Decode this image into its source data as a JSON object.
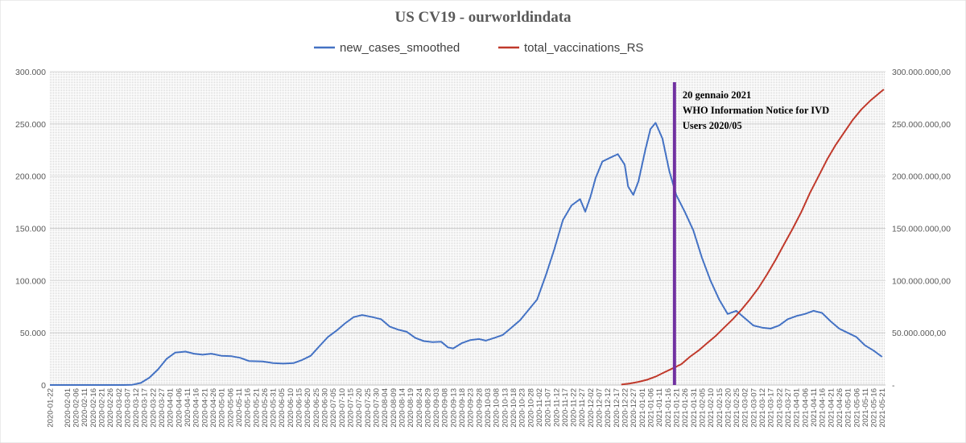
{
  "chart_data": {
    "type": "line",
    "title": "US CV19  - ourworldindata",
    "legend": "top",
    "grid": true,
    "series": [
      {
        "name": "new_cases_smoothed",
        "axis": "left",
        "color": "#4472C4",
        "points": [
          [
            "2020-01-22",
            0
          ],
          [
            "2020-02-15",
            0
          ],
          [
            "2020-03-05",
            0
          ],
          [
            "2020-03-10",
            200
          ],
          [
            "2020-03-15",
            2000
          ],
          [
            "2020-03-20",
            7000
          ],
          [
            "2020-03-25",
            15000
          ],
          [
            "2020-03-30",
            25000
          ],
          [
            "2020-04-04",
            31000
          ],
          [
            "2020-04-10",
            32000
          ],
          [
            "2020-04-15",
            30000
          ],
          [
            "2020-04-20",
            29000
          ],
          [
            "2020-04-25",
            30000
          ],
          [
            "2020-05-01",
            28000
          ],
          [
            "2020-05-07",
            27500
          ],
          [
            "2020-05-12",
            26000
          ],
          [
            "2020-05-17",
            23000
          ],
          [
            "2020-05-25",
            22500
          ],
          [
            "2020-05-31",
            21000
          ],
          [
            "2020-06-06",
            20500
          ],
          [
            "2020-06-12",
            21000
          ],
          [
            "2020-06-17",
            24000
          ],
          [
            "2020-06-22",
            28000
          ],
          [
            "2020-06-27",
            37000
          ],
          [
            "2020-07-02",
            46000
          ],
          [
            "2020-07-07",
            52000
          ],
          [
            "2020-07-12",
            59000
          ],
          [
            "2020-07-17",
            65000
          ],
          [
            "2020-07-22",
            67000
          ],
          [
            "2020-07-28",
            65000
          ],
          [
            "2020-08-02",
            63000
          ],
          [
            "2020-08-07",
            56000
          ],
          [
            "2020-08-12",
            53000
          ],
          [
            "2020-08-17",
            51000
          ],
          [
            "2020-08-22",
            45000
          ],
          [
            "2020-08-27",
            42000
          ],
          [
            "2020-09-01",
            41000
          ],
          [
            "2020-09-06",
            41500
          ],
          [
            "2020-09-10",
            36000
          ],
          [
            "2020-09-13",
            35000
          ],
          [
            "2020-09-18",
            40000
          ],
          [
            "2020-09-23",
            43000
          ],
          [
            "2020-09-28",
            44000
          ],
          [
            "2020-10-02",
            42500
          ],
          [
            "2020-10-07",
            45000
          ],
          [
            "2020-10-12",
            48000
          ],
          [
            "2020-10-17",
            55000
          ],
          [
            "2020-10-22",
            62000
          ],
          [
            "2020-10-27",
            72000
          ],
          [
            "2020-11-01",
            82000
          ],
          [
            "2020-11-06",
            105000
          ],
          [
            "2020-11-11",
            130000
          ],
          [
            "2020-11-16",
            158000
          ],
          [
            "2020-11-21",
            172000
          ],
          [
            "2020-11-26",
            178000
          ],
          [
            "2020-11-29",
            166000
          ],
          [
            "2020-12-02",
            180000
          ],
          [
            "2020-12-05",
            198000
          ],
          [
            "2020-12-09",
            214000
          ],
          [
            "2020-12-14",
            218000
          ],
          [
            "2020-12-18",
            221000
          ],
          [
            "2020-12-22",
            211000
          ],
          [
            "2020-12-24",
            190000
          ],
          [
            "2020-12-27",
            182000
          ],
          [
            "2020-12-30",
            195000
          ],
          [
            "2021-01-03",
            225000
          ],
          [
            "2021-01-06",
            245000
          ],
          [
            "2021-01-09",
            251000
          ],
          [
            "2021-01-13",
            236000
          ],
          [
            "2021-01-17",
            205000
          ],
          [
            "2021-01-21",
            182000
          ],
          [
            "2021-01-26",
            166000
          ],
          [
            "2021-01-31",
            148000
          ],
          [
            "2021-02-05",
            122000
          ],
          [
            "2021-02-10",
            100000
          ],
          [
            "2021-02-15",
            82000
          ],
          [
            "2021-02-20",
            68000
          ],
          [
            "2021-02-25",
            71000
          ],
          [
            "2021-03-02",
            64000
          ],
          [
            "2021-03-07",
            57000
          ],
          [
            "2021-03-12",
            55000
          ],
          [
            "2021-03-17",
            54000
          ],
          [
            "2021-03-22",
            57000
          ],
          [
            "2021-03-27",
            63000
          ],
          [
            "2021-04-01",
            66000
          ],
          [
            "2021-04-06",
            68000
          ],
          [
            "2021-04-11",
            71000
          ],
          [
            "2021-04-16",
            69000
          ],
          [
            "2021-04-21",
            61000
          ],
          [
            "2021-04-26",
            54000
          ],
          [
            "2021-05-01",
            50000
          ],
          [
            "2021-05-06",
            46000
          ],
          [
            "2021-05-11",
            38000
          ],
          [
            "2021-05-16",
            33000
          ],
          [
            "2021-05-21",
            27000
          ]
        ]
      },
      {
        "name": "total_vaccinations_RS",
        "axis": "right",
        "color": "#C0392B",
        "points": [
          [
            "2020-12-20",
            500000
          ],
          [
            "2020-12-25",
            1500000
          ],
          [
            "2020-12-30",
            3000000
          ],
          [
            "2021-01-04",
            5000000
          ],
          [
            "2021-01-09",
            8000000
          ],
          [
            "2021-01-14",
            12000000
          ],
          [
            "2021-01-19",
            16000000
          ],
          [
            "2021-01-24",
            20000000
          ],
          [
            "2021-01-29",
            27000000
          ],
          [
            "2021-02-03",
            33000000
          ],
          [
            "2021-02-08",
            40000000
          ],
          [
            "2021-02-13",
            47000000
          ],
          [
            "2021-02-18",
            55000000
          ],
          [
            "2021-02-23",
            63000000
          ],
          [
            "2021-02-28",
            72000000
          ],
          [
            "2021-03-05",
            82000000
          ],
          [
            "2021-03-10",
            93000000
          ],
          [
            "2021-03-15",
            106000000
          ],
          [
            "2021-03-20",
            120000000
          ],
          [
            "2021-03-25",
            135000000
          ],
          [
            "2021-03-30",
            150000000
          ],
          [
            "2021-04-04",
            166000000
          ],
          [
            "2021-04-09",
            184000000
          ],
          [
            "2021-04-14",
            200000000
          ],
          [
            "2021-04-19",
            216000000
          ],
          [
            "2021-04-24",
            230000000
          ],
          [
            "2021-04-29",
            242000000
          ],
          [
            "2021-05-04",
            254000000
          ],
          [
            "2021-05-09",
            264000000
          ],
          [
            "2021-05-14",
            272000000
          ],
          [
            "2021-05-19",
            279000000
          ],
          [
            "2021-05-22",
            283000000
          ]
        ]
      }
    ],
    "x_axis": {
      "type": "date",
      "range": [
        "2020-01-22",
        "2021-05-23"
      ],
      "ticks": [
        "2020-01-22",
        "2020-02-01",
        "2020-02-06",
        "2020-02-11",
        "2020-02-16",
        "2020-02-21",
        "2020-02-26",
        "2020-03-02",
        "2020-03-07",
        "2020-03-12",
        "2020-03-17",
        "2020-03-22",
        "2020-03-27",
        "2020-04-01",
        "2020-04-06",
        "2020-04-11",
        "2020-04-16",
        "2020-04-21",
        "2020-04-26",
        "2020-05-01",
        "2020-05-06",
        "2020-05-11",
        "2020-05-16",
        "2020-05-21",
        "2020-05-26",
        "2020-05-31",
        "2020-06-05",
        "2020-06-10",
        "2020-06-15",
        "2020-06-20",
        "2020-06-25",
        "2020-06-30",
        "2020-07-05",
        "2020-07-10",
        "2020-07-15",
        "2020-07-20",
        "2020-07-25",
        "2020-07-30",
        "2020-08-04",
        "2020-08-09",
        "2020-08-14",
        "2020-08-19",
        "2020-08-24",
        "2020-08-29",
        "2020-09-03",
        "2020-09-08",
        "2020-09-13",
        "2020-09-18",
        "2020-09-23",
        "2020-09-28",
        "2020-10-03",
        "2020-10-08",
        "2020-10-13",
        "2020-10-18",
        "2020-10-23",
        "2020-10-28",
        "2020-11-02",
        "2020-11-07",
        "2020-11-12",
        "2020-11-17",
        "2020-11-22",
        "2020-11-27",
        "2020-12-02",
        "2020-12-07",
        "2020-12-12",
        "2020-12-17",
        "2020-12-22",
        "2020-12-27",
        "2021-01-01",
        "2021-01-06",
        "2021-01-11",
        "2021-01-16",
        "2021-01-21",
        "2021-01-26",
        "2021-01-31",
        "2021-02-05",
        "2021-02-10",
        "2021-02-15",
        "2021-02-20",
        "2021-02-25",
        "2021-03-02",
        "2021-03-07",
        "2021-03-12",
        "2021-03-17",
        "2021-03-22",
        "2021-03-27",
        "2021-04-01",
        "2021-04-06",
        "2021-04-11",
        "2021-04-16",
        "2021-04-21",
        "2021-04-26",
        "2021-05-01",
        "2021-05-06",
        "2021-05-11",
        "2021-05-16",
        "2021-05-21"
      ]
    },
    "y_left": {
      "range": [
        0,
        300000
      ],
      "ticks": [
        0,
        50000,
        100000,
        150000,
        200000,
        250000,
        300000
      ],
      "tick_labels": [
        "0",
        "50.000",
        "100.000",
        "150.000",
        "200.000",
        "250.000",
        "300.000"
      ]
    },
    "y_right": {
      "range": [
        0,
        300000000
      ],
      "ticks": [
        0,
        50000000,
        100000000,
        150000000,
        200000000,
        250000000,
        300000000
      ],
      "tick_labels": [
        "-",
        "50.000.000,00",
        "100.000.000,00",
        "150.000.000,00",
        "200.000.000,00",
        "250.000.000,00",
        "300.000.000,00"
      ]
    },
    "annotation": {
      "date": "2021-01-20",
      "color": "#7030A0",
      "lines": [
        "20 gennaio 2021",
        "WHO Information Notice for IVD",
        "Users 2020/05"
      ]
    }
  }
}
